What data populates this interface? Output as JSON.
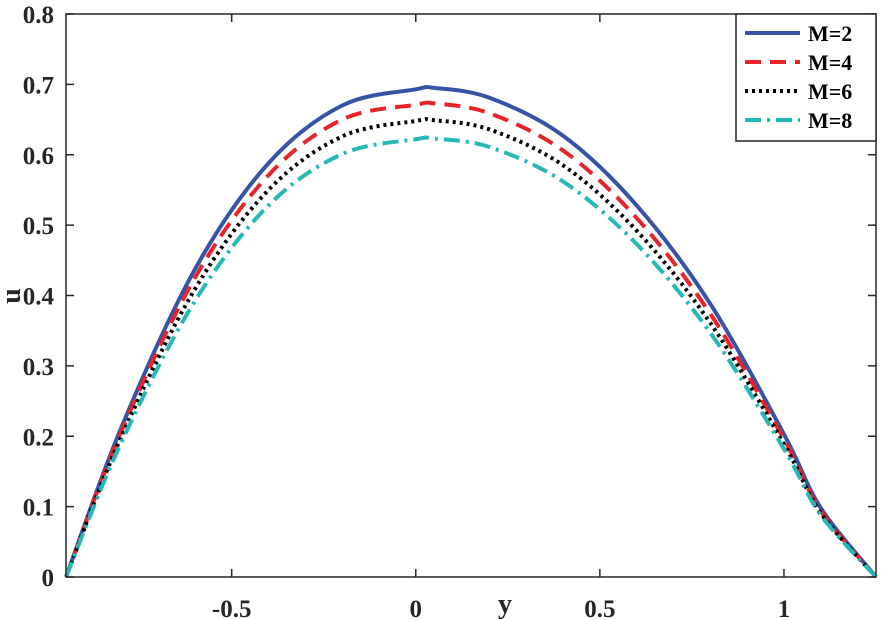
{
  "chart_data": {
    "type": "line",
    "title": "",
    "xlabel": "y",
    "ylabel": "u",
    "xlim": [
      -0.95,
      1.25
    ],
    "ylim": [
      0,
      0.8
    ],
    "xticks": [
      -0.5,
      0,
      0.5,
      1
    ],
    "xtick_labels": [
      "-0.5",
      "0",
      "0.5",
      "1"
    ],
    "yticks": [
      0,
      0.1,
      0.2,
      0.3,
      0.4,
      0.5,
      0.6,
      0.7,
      0.8
    ],
    "ytick_labels": [
      "0",
      "0.1",
      "0.2",
      "0.3",
      "0.4",
      "0.5",
      "0.6",
      "0.7",
      "0.8"
    ],
    "grid": false,
    "legend_position": "top-right",
    "series": [
      {
        "name": "M=2",
        "color": "#3653a5",
        "style": "solid",
        "x": [
          -0.95,
          -0.8,
          -0.6,
          -0.4,
          -0.2,
          0,
          0.05,
          0.2,
          0.4,
          0.6,
          0.8,
          1.0,
          1.1,
          1.25
        ],
        "y": [
          0,
          0.212,
          0.437,
          0.588,
          0.67,
          0.693,
          0.695,
          0.681,
          0.627,
          0.528,
          0.388,
          0.203,
          0.098,
          0
        ]
      },
      {
        "name": "M=4",
        "color": "#e8232a",
        "style": "dashed",
        "x": [
          -0.95,
          -0.8,
          -0.6,
          -0.4,
          -0.2,
          0,
          0.05,
          0.2,
          0.4,
          0.6,
          0.8,
          1.0,
          1.1,
          1.25
        ],
        "y": [
          0,
          0.207,
          0.425,
          0.571,
          0.65,
          0.671,
          0.673,
          0.659,
          0.606,
          0.51,
          0.374,
          0.196,
          0.094,
          0
        ]
      },
      {
        "name": "M=6",
        "color": "#000000",
        "style": "dotted",
        "x": [
          -0.95,
          -0.8,
          -0.6,
          -0.4,
          -0.2,
          0,
          0.05,
          0.2,
          0.4,
          0.6,
          0.8,
          1.0,
          1.1,
          1.25
        ],
        "y": [
          0,
          0.199,
          0.409,
          0.55,
          0.626,
          0.648,
          0.649,
          0.636,
          0.585,
          0.492,
          0.361,
          0.189,
          0.091,
          0
        ]
      },
      {
        "name": "M=8",
        "color": "#25b9b5",
        "style": "dashdot",
        "x": [
          -0.95,
          -0.8,
          -0.6,
          -0.4,
          -0.2,
          0,
          0.05,
          0.2,
          0.4,
          0.6,
          0.8,
          1.0,
          1.1,
          1.25
        ],
        "y": [
          0,
          0.191,
          0.392,
          0.528,
          0.601,
          0.622,
          0.623,
          0.611,
          0.562,
          0.473,
          0.347,
          0.182,
          0.088,
          0
        ]
      }
    ]
  }
}
